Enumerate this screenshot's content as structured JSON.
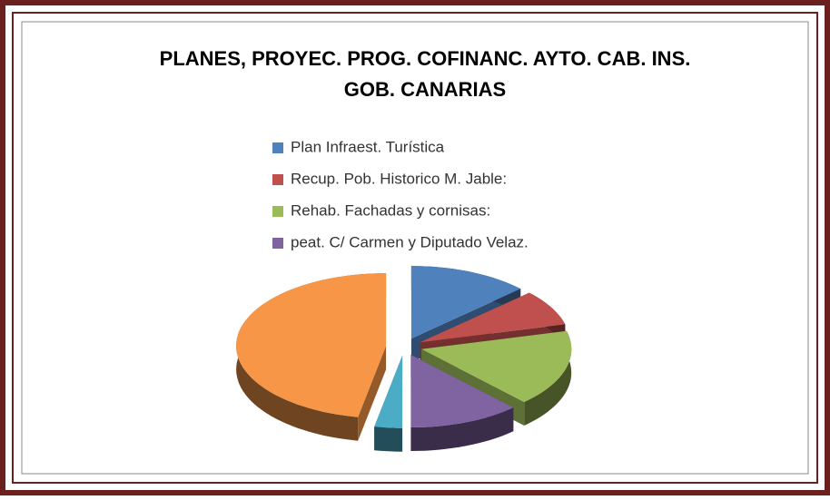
{
  "chart_data": {
    "type": "pie3d",
    "title": "PLANES, PROYEC. PROG. COFINANC. AYTO. CAB. INS.",
    "subtitle": "GOB. CANARIAS",
    "categories": [
      "Plan Infraest. Turística",
      "Recup. Pob. Historico M. Jable:",
      "Rehab. Fachadas y cornisas:",
      "peat. C/ Carmen y Diputado Velaz.",
      null,
      null
    ],
    "values": [
      13,
      8,
      17,
      12,
      3,
      47
    ],
    "colors": [
      "#4f81bd",
      "#c0504d",
      "#9bbb59",
      "#8064a2",
      "#4bacc6",
      "#f79646"
    ]
  }
}
